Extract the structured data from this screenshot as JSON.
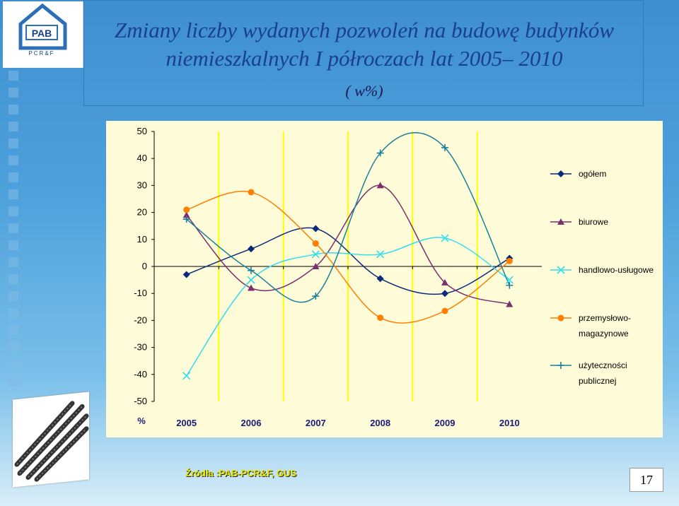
{
  "logo": {
    "text": "PAB",
    "subtext": "PCR&F"
  },
  "slide_title": {
    "line1": "Zmiany liczby wydanych pozwoleń na budowę  budynków",
    "line2": "niemieszkalnych I półroczach   lat 2005– 2010",
    "subtitle": "( w%)"
  },
  "source": "Źródła :PAB-PCR&F, GUS",
  "page_number": "17",
  "colors": {
    "background": "#4fa2dc",
    "plot_background": "#fefcd8",
    "gridline": "#ffff00",
    "title": "#1a3f8f"
  },
  "chart_data": {
    "type": "line",
    "title": "",
    "xlabel": "",
    "ylabel": "%",
    "categories": [
      "2005",
      "2006",
      "2007",
      "2008",
      "2009",
      "2010"
    ],
    "ylim": [
      -50,
      50
    ],
    "yticks": [
      50,
      40,
      30,
      20,
      10,
      0,
      -10,
      -20,
      -30,
      -40,
      -50
    ],
    "grid": "vertical",
    "smooth": true,
    "legend_position": "right",
    "series": [
      {
        "name": "ogółem",
        "color": "#0b2a7a",
        "marker": "diamond",
        "values": [
          -3,
          6.5,
          14,
          -4.5,
          -10,
          3
        ]
      },
      {
        "name": "biurowe",
        "color": "#7b2d6e",
        "marker": "triangle",
        "values": [
          19,
          -8,
          0,
          30,
          -6,
          -14
        ]
      },
      {
        "name": "handlowo-usługowe",
        "color": "#33ddee",
        "marker": "x",
        "values": [
          -40.5,
          -5,
          4.5,
          4.5,
          10.5,
          -5
        ]
      },
      {
        "name": "przemysłowo-magazynowe",
        "color": "#ff7f00",
        "marker": "circle",
        "values": [
          21,
          27.5,
          8.5,
          -19,
          -16.5,
          2
        ]
      },
      {
        "name": "użyteczności publicznej",
        "color": "#1a7f9a",
        "marker": "plus",
        "values": [
          17.5,
          -1.5,
          -11,
          42,
          44,
          -7
        ]
      }
    ],
    "legend_labels": [
      [
        "ogółem"
      ],
      [
        "biurowe"
      ],
      [
        "handlowo-usługowe"
      ],
      [
        "przemysłowo-",
        "magazynowe"
      ],
      [
        "użyteczności",
        "publicznej"
      ]
    ]
  }
}
